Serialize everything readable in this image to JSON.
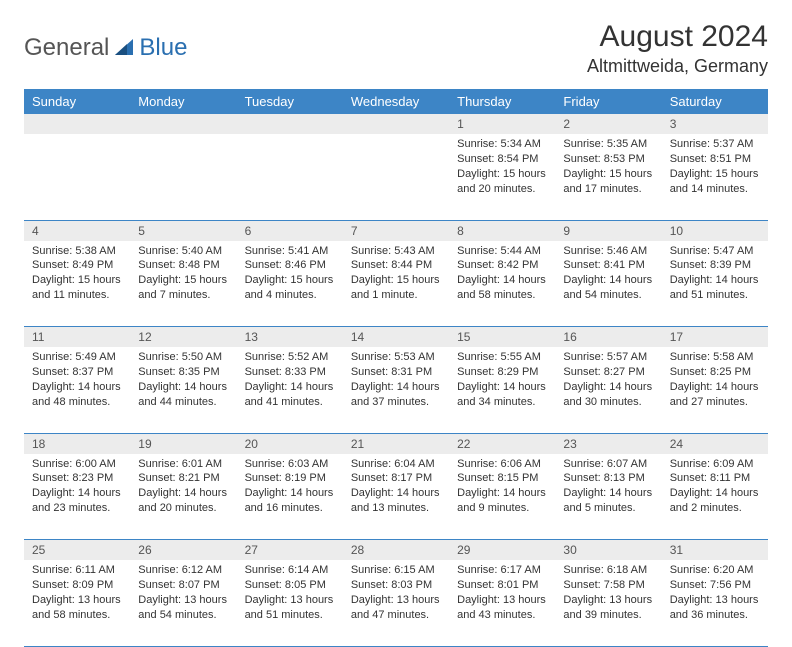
{
  "logo": {
    "part1": "General",
    "part2": "Blue"
  },
  "title": "August 2024",
  "location": "Altmittweida, Germany",
  "colors": {
    "header_bg": "#3d85c6",
    "header_fg": "#ffffff",
    "daynum_bg": "#ececec",
    "logo_blue": "#2a6fb0",
    "text": "#333333"
  },
  "day_headers": [
    "Sunday",
    "Monday",
    "Tuesday",
    "Wednesday",
    "Thursday",
    "Friday",
    "Saturday"
  ],
  "weeks": [
    [
      {
        "num": "",
        "sunrise": "",
        "sunset": "",
        "daylight": ""
      },
      {
        "num": "",
        "sunrise": "",
        "sunset": "",
        "daylight": ""
      },
      {
        "num": "",
        "sunrise": "",
        "sunset": "",
        "daylight": ""
      },
      {
        "num": "",
        "sunrise": "",
        "sunset": "",
        "daylight": ""
      },
      {
        "num": "1",
        "sunrise": "Sunrise: 5:34 AM",
        "sunset": "Sunset: 8:54 PM",
        "daylight": "Daylight: 15 hours and 20 minutes."
      },
      {
        "num": "2",
        "sunrise": "Sunrise: 5:35 AM",
        "sunset": "Sunset: 8:53 PM",
        "daylight": "Daylight: 15 hours and 17 minutes."
      },
      {
        "num": "3",
        "sunrise": "Sunrise: 5:37 AM",
        "sunset": "Sunset: 8:51 PM",
        "daylight": "Daylight: 15 hours and 14 minutes."
      }
    ],
    [
      {
        "num": "4",
        "sunrise": "Sunrise: 5:38 AM",
        "sunset": "Sunset: 8:49 PM",
        "daylight": "Daylight: 15 hours and 11 minutes."
      },
      {
        "num": "5",
        "sunrise": "Sunrise: 5:40 AM",
        "sunset": "Sunset: 8:48 PM",
        "daylight": "Daylight: 15 hours and 7 minutes."
      },
      {
        "num": "6",
        "sunrise": "Sunrise: 5:41 AM",
        "sunset": "Sunset: 8:46 PM",
        "daylight": "Daylight: 15 hours and 4 minutes."
      },
      {
        "num": "7",
        "sunrise": "Sunrise: 5:43 AM",
        "sunset": "Sunset: 8:44 PM",
        "daylight": "Daylight: 15 hours and 1 minute."
      },
      {
        "num": "8",
        "sunrise": "Sunrise: 5:44 AM",
        "sunset": "Sunset: 8:42 PM",
        "daylight": "Daylight: 14 hours and 58 minutes."
      },
      {
        "num": "9",
        "sunrise": "Sunrise: 5:46 AM",
        "sunset": "Sunset: 8:41 PM",
        "daylight": "Daylight: 14 hours and 54 minutes."
      },
      {
        "num": "10",
        "sunrise": "Sunrise: 5:47 AM",
        "sunset": "Sunset: 8:39 PM",
        "daylight": "Daylight: 14 hours and 51 minutes."
      }
    ],
    [
      {
        "num": "11",
        "sunrise": "Sunrise: 5:49 AM",
        "sunset": "Sunset: 8:37 PM",
        "daylight": "Daylight: 14 hours and 48 minutes."
      },
      {
        "num": "12",
        "sunrise": "Sunrise: 5:50 AM",
        "sunset": "Sunset: 8:35 PM",
        "daylight": "Daylight: 14 hours and 44 minutes."
      },
      {
        "num": "13",
        "sunrise": "Sunrise: 5:52 AM",
        "sunset": "Sunset: 8:33 PM",
        "daylight": "Daylight: 14 hours and 41 minutes."
      },
      {
        "num": "14",
        "sunrise": "Sunrise: 5:53 AM",
        "sunset": "Sunset: 8:31 PM",
        "daylight": "Daylight: 14 hours and 37 minutes."
      },
      {
        "num": "15",
        "sunrise": "Sunrise: 5:55 AM",
        "sunset": "Sunset: 8:29 PM",
        "daylight": "Daylight: 14 hours and 34 minutes."
      },
      {
        "num": "16",
        "sunrise": "Sunrise: 5:57 AM",
        "sunset": "Sunset: 8:27 PM",
        "daylight": "Daylight: 14 hours and 30 minutes."
      },
      {
        "num": "17",
        "sunrise": "Sunrise: 5:58 AM",
        "sunset": "Sunset: 8:25 PM",
        "daylight": "Daylight: 14 hours and 27 minutes."
      }
    ],
    [
      {
        "num": "18",
        "sunrise": "Sunrise: 6:00 AM",
        "sunset": "Sunset: 8:23 PM",
        "daylight": "Daylight: 14 hours and 23 minutes."
      },
      {
        "num": "19",
        "sunrise": "Sunrise: 6:01 AM",
        "sunset": "Sunset: 8:21 PM",
        "daylight": "Daylight: 14 hours and 20 minutes."
      },
      {
        "num": "20",
        "sunrise": "Sunrise: 6:03 AM",
        "sunset": "Sunset: 8:19 PM",
        "daylight": "Daylight: 14 hours and 16 minutes."
      },
      {
        "num": "21",
        "sunrise": "Sunrise: 6:04 AM",
        "sunset": "Sunset: 8:17 PM",
        "daylight": "Daylight: 14 hours and 13 minutes."
      },
      {
        "num": "22",
        "sunrise": "Sunrise: 6:06 AM",
        "sunset": "Sunset: 8:15 PM",
        "daylight": "Daylight: 14 hours and 9 minutes."
      },
      {
        "num": "23",
        "sunrise": "Sunrise: 6:07 AM",
        "sunset": "Sunset: 8:13 PM",
        "daylight": "Daylight: 14 hours and 5 minutes."
      },
      {
        "num": "24",
        "sunrise": "Sunrise: 6:09 AM",
        "sunset": "Sunset: 8:11 PM",
        "daylight": "Daylight: 14 hours and 2 minutes."
      }
    ],
    [
      {
        "num": "25",
        "sunrise": "Sunrise: 6:11 AM",
        "sunset": "Sunset: 8:09 PM",
        "daylight": "Daylight: 13 hours and 58 minutes."
      },
      {
        "num": "26",
        "sunrise": "Sunrise: 6:12 AM",
        "sunset": "Sunset: 8:07 PM",
        "daylight": "Daylight: 13 hours and 54 minutes."
      },
      {
        "num": "27",
        "sunrise": "Sunrise: 6:14 AM",
        "sunset": "Sunset: 8:05 PM",
        "daylight": "Daylight: 13 hours and 51 minutes."
      },
      {
        "num": "28",
        "sunrise": "Sunrise: 6:15 AM",
        "sunset": "Sunset: 8:03 PM",
        "daylight": "Daylight: 13 hours and 47 minutes."
      },
      {
        "num": "29",
        "sunrise": "Sunrise: 6:17 AM",
        "sunset": "Sunset: 8:01 PM",
        "daylight": "Daylight: 13 hours and 43 minutes."
      },
      {
        "num": "30",
        "sunrise": "Sunrise: 6:18 AM",
        "sunset": "Sunset: 7:58 PM",
        "daylight": "Daylight: 13 hours and 39 minutes."
      },
      {
        "num": "31",
        "sunrise": "Sunrise: 6:20 AM",
        "sunset": "Sunset: 7:56 PM",
        "daylight": "Daylight: 13 hours and 36 minutes."
      }
    ]
  ]
}
